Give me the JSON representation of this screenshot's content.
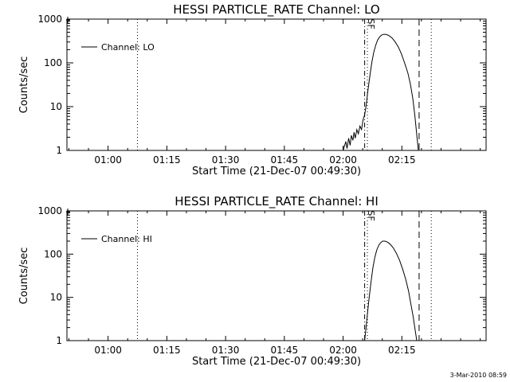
{
  "footer": {
    "date": "3-Mar-2010 08:59"
  },
  "chart_data": [
    {
      "type": "line",
      "title": "HESSI PARTICLE_RATE Channel: LO",
      "xlabel": "Start Time (21-Dec-07 00:49:30)",
      "ylabel": "Counts/sec",
      "legend": {
        "entries": [
          "Channel: LO"
        ],
        "placement": "top-left"
      },
      "x_unit": "minutes since 00:49:30",
      "xlim": [
        0,
        107
      ],
      "x_ticks": [
        {
          "label": "01:00",
          "value": 10.5
        },
        {
          "label": "01:15",
          "value": 25.5
        },
        {
          "label": "01:30",
          "value": 40.5
        },
        {
          "label": "01:45",
          "value": 55.5
        },
        {
          "label": "02:00",
          "value": 70.5
        },
        {
          "label": "02:15",
          "value": 85.5
        }
      ],
      "y_scale": "log",
      "ylim": [
        1,
        1000
      ],
      "y_ticks": [
        {
          "label": "1",
          "value": 1
        },
        {
          "label": "10",
          "value": 10
        },
        {
          "label": "100",
          "value": 100
        },
        {
          "label": "1000",
          "value": 1000
        }
      ],
      "marker_lines": [
        {
          "x": 18.0,
          "style": "dotted"
        },
        {
          "x": 76.0,
          "style": "dashdot"
        },
        {
          "x": 76.7,
          "style": "dotted"
        },
        {
          "x": 89.9,
          "style": "dashed"
        },
        {
          "x": 93.0,
          "style": "dotted"
        }
      ],
      "marker_label": {
        "text": "SF",
        "x": 76.3
      },
      "series": [
        {
          "name": "Channel: LO",
          "points": [
            [
              70.5,
              1.0
            ],
            [
              71.2,
              1.6
            ],
            [
              71.5,
              1.1
            ],
            [
              71.9,
              1.9
            ],
            [
              72.3,
              1.3
            ],
            [
              72.6,
              2.2
            ],
            [
              73.0,
              1.7
            ],
            [
              73.3,
              2.6
            ],
            [
              73.6,
              1.9
            ],
            [
              74.0,
              3.0
            ],
            [
              74.4,
              2.4
            ],
            [
              74.8,
              3.6
            ],
            [
              75.2,
              3.0
            ],
            [
              75.6,
              5.0
            ],
            [
              76.0,
              6.5
            ],
            [
              76.4,
              11
            ],
            [
              76.8,
              22
            ],
            [
              77.3,
              48
            ],
            [
              77.8,
              100
            ],
            [
              78.3,
              170
            ],
            [
              78.8,
              250
            ],
            [
              79.3,
              330
            ],
            [
              79.8,
              390
            ],
            [
              80.3,
              430
            ],
            [
              80.8,
              450
            ],
            [
              81.5,
              445
            ],
            [
              82.2,
              420
            ],
            [
              83.0,
              370
            ],
            [
              83.8,
              300
            ],
            [
              84.6,
              230
            ],
            [
              85.4,
              160
            ],
            [
              86.2,
              100
            ],
            [
              87.0,
              60
            ],
            [
              87.7,
              32
            ],
            [
              88.3,
              15
            ],
            [
              88.8,
              6.5
            ],
            [
              89.2,
              2.8
            ],
            [
              89.5,
              1.5
            ],
            [
              89.7,
              1.0
            ]
          ]
        }
      ]
    },
    {
      "type": "line",
      "title": "HESSI PARTICLE_RATE Channel: HI",
      "xlabel": "Start Time (21-Dec-07 00:49:30)",
      "ylabel": "Counts/sec",
      "legend": {
        "entries": [
          "Channel: HI"
        ],
        "placement": "top-left"
      },
      "x_unit": "minutes since 00:49:30",
      "xlim": [
        0,
        107
      ],
      "x_ticks": [
        {
          "label": "01:00",
          "value": 10.5
        },
        {
          "label": "01:15",
          "value": 25.5
        },
        {
          "label": "01:30",
          "value": 40.5
        },
        {
          "label": "01:45",
          "value": 55.5
        },
        {
          "label": "02:00",
          "value": 70.5
        },
        {
          "label": "02:15",
          "value": 85.5
        }
      ],
      "y_scale": "log",
      "ylim": [
        1,
        1000
      ],
      "y_ticks": [
        {
          "label": "1",
          "value": 1
        },
        {
          "label": "10",
          "value": 10
        },
        {
          "label": "100",
          "value": 100
        },
        {
          "label": "1000",
          "value": 1000
        }
      ],
      "marker_lines": [
        {
          "x": 18.0,
          "style": "dotted"
        },
        {
          "x": 76.0,
          "style": "dashdot"
        },
        {
          "x": 76.7,
          "style": "dotted"
        },
        {
          "x": 89.9,
          "style": "dashed"
        },
        {
          "x": 93.0,
          "style": "dotted"
        }
      ],
      "marker_label": {
        "text": "SF",
        "x": 76.3
      },
      "series": [
        {
          "name": "Channel: HI",
          "points": [
            [
              76.0,
              1.0
            ],
            [
              76.3,
              1.8
            ],
            [
              76.7,
              4.0
            ],
            [
              77.1,
              9
            ],
            [
              77.6,
              22
            ],
            [
              78.1,
              48
            ],
            [
              78.6,
              85
            ],
            [
              79.1,
              125
            ],
            [
              79.6,
              160
            ],
            [
              80.1,
              185
            ],
            [
              80.6,
              200
            ],
            [
              81.2,
              200
            ],
            [
              81.8,
              190
            ],
            [
              82.5,
              170
            ],
            [
              83.3,
              140
            ],
            [
              84.1,
              105
            ],
            [
              84.9,
              72
            ],
            [
              85.7,
              45
            ],
            [
              86.5,
              26
            ],
            [
              87.2,
              14
            ],
            [
              87.8,
              7
            ],
            [
              88.4,
              3.5
            ],
            [
              88.8,
              2.0
            ],
            [
              89.3,
              1.0
            ]
          ]
        }
      ]
    }
  ]
}
